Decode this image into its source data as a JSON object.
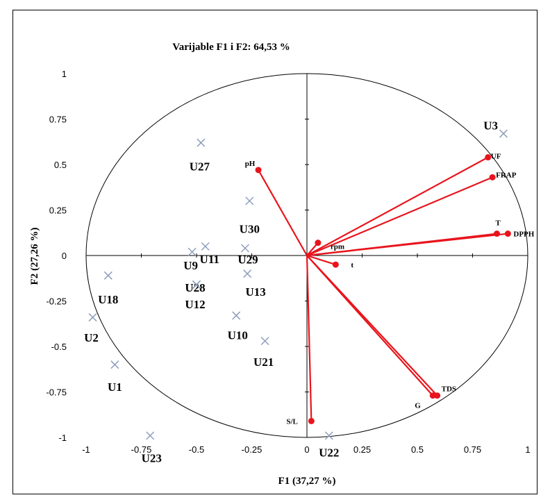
{
  "chart_data": {
    "type": "scatter",
    "title": "Varijable F1 i F2: 64,53 %",
    "xlabel": "F1 (37,27 %)",
    "ylabel": "F2 (27,26 %)",
    "xlim": [
      -1,
      1
    ],
    "ylim": [
      -1,
      1
    ],
    "x_ticks": [
      {
        "v": -1,
        "label": "-1"
      },
      {
        "v": -0.75,
        "label": "-0.75"
      },
      {
        "v": -0.5,
        "label": "-0.5"
      },
      {
        "v": -0.25,
        "label": "-0.25"
      },
      {
        "v": 0,
        "label": "0"
      },
      {
        "v": 0.25,
        "label": "0.25"
      },
      {
        "v": 0.5,
        "label": "0.5"
      },
      {
        "v": 0.75,
        "label": "0.75"
      },
      {
        "v": 1,
        "label": "1"
      }
    ],
    "y_ticks": [
      {
        "v": 1,
        "label": "1"
      },
      {
        "v": 0.75,
        "label": "0.75"
      },
      {
        "v": 0.5,
        "label": "0.5"
      },
      {
        "v": 0.25,
        "label": "0.25"
      },
      {
        "v": 0,
        "label": "0"
      },
      {
        "v": -0.25,
        "label": "-0.25"
      },
      {
        "v": -0.5,
        "label": "-0.5"
      },
      {
        "v": -0.75,
        "label": "-0.75"
      },
      {
        "v": -1,
        "label": "-1"
      }
    ],
    "correlation_circle": true,
    "variables": [
      {
        "name": "pH",
        "x": -0.22,
        "y": 0.47
      },
      {
        "name": "UF",
        "x": 0.82,
        "y": 0.54
      },
      {
        "name": "FRAP",
        "x": 0.84,
        "y": 0.43
      },
      {
        "name": "T",
        "x": 0.86,
        "y": 0.12
      },
      {
        "name": "DPPH",
        "x": 0.91,
        "y": 0.12
      },
      {
        "name": "rpm",
        "x": 0.05,
        "y": 0.07
      },
      {
        "name": "t",
        "x": 0.13,
        "y": -0.05
      },
      {
        "name": "TDS",
        "x": 0.59,
        "y": -0.77
      },
      {
        "name": "G",
        "x": 0.57,
        "y": -0.77
      },
      {
        "name": "S/L",
        "x": 0.02,
        "y": -0.91
      }
    ],
    "observations": [
      {
        "name": "U3",
        "x": 0.89,
        "y": 0.67
      },
      {
        "name": "U27",
        "x": -0.48,
        "y": 0.62
      },
      {
        "name": "U30",
        "x": -0.26,
        "y": 0.3
      },
      {
        "name": "U11",
        "x": -0.46,
        "y": 0.05
      },
      {
        "name": "U9",
        "x": -0.52,
        "y": 0.02
      },
      {
        "name": "U29",
        "x": -0.28,
        "y": 0.04
      },
      {
        "name": "U28",
        "x": -0.5,
        "y": -0.16
      },
      {
        "name": "U12",
        "x": -0.5,
        "y": -0.16
      },
      {
        "name": "U13",
        "x": -0.27,
        "y": -0.1
      },
      {
        "name": "U18",
        "x": -0.9,
        "y": -0.11
      },
      {
        "name": "U2",
        "x": -0.97,
        "y": -0.34
      },
      {
        "name": "U10",
        "x": -0.32,
        "y": -0.33
      },
      {
        "name": "U21",
        "x": -0.19,
        "y": -0.47
      },
      {
        "name": "U1",
        "x": -0.87,
        "y": -0.6
      },
      {
        "name": "U23",
        "x": -0.71,
        "y": -0.99
      },
      {
        "name": "U22",
        "x": 0.1,
        "y": -0.99
      }
    ],
    "colors": {
      "variable": "#e8141c",
      "observation": "#8e9fbc",
      "axis": "#000000"
    }
  }
}
